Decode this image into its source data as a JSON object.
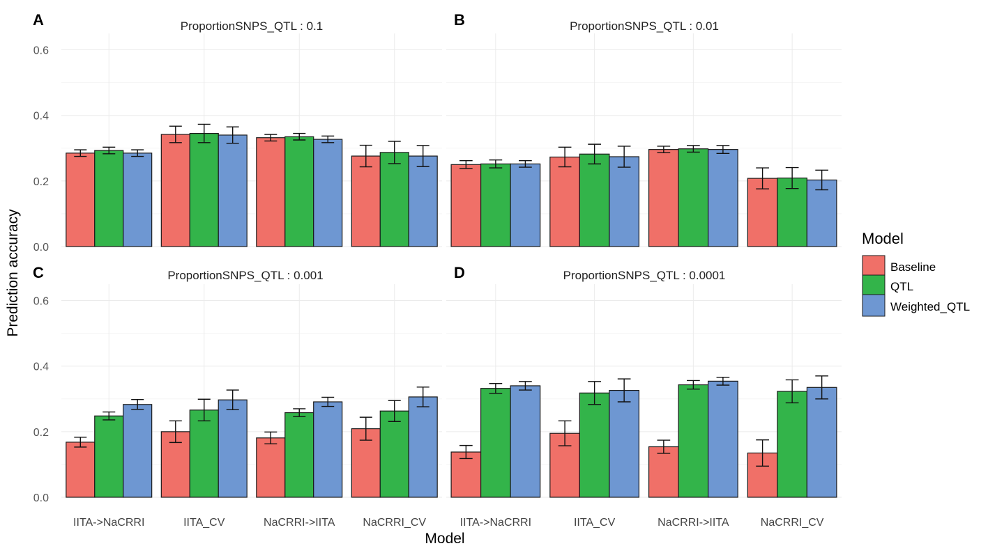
{
  "chart_data": [
    {
      "type": "bar",
      "panel_label": "A",
      "title": "ProportionSNPS_QTL : 0.1",
      "categories": [
        "IITA->NaCRRI",
        "IITA_CV",
        "NaCRRI->IITA",
        "NaCRRI_CV"
      ],
      "series": [
        {
          "name": "Baseline",
          "values": [
            0.285,
            0.342,
            0.332,
            0.276
          ],
          "errors": [
            0.01,
            0.025,
            0.01,
            0.033
          ]
        },
        {
          "name": "QTL",
          "values": [
            0.293,
            0.345,
            0.335,
            0.287
          ],
          "errors": [
            0.01,
            0.028,
            0.01,
            0.034
          ]
        },
        {
          "name": "Weighted_QTL",
          "values": [
            0.285,
            0.34,
            0.327,
            0.276
          ],
          "errors": [
            0.01,
            0.025,
            0.01,
            0.032
          ]
        }
      ],
      "ylim": [
        0,
        0.65
      ],
      "yticks": [
        0.0,
        0.2,
        0.4,
        0.6
      ],
      "show_x_labels": false,
      "show_y_labels": true
    },
    {
      "type": "bar",
      "panel_label": "B",
      "title": "ProportionSNPS_QTL : 0.01",
      "categories": [
        "IITA->NaCRRI",
        "IITA_CV",
        "NaCRRI->IITA",
        "NaCRRI_CV"
      ],
      "series": [
        {
          "name": "Baseline",
          "values": [
            0.25,
            0.273,
            0.296,
            0.208
          ],
          "errors": [
            0.012,
            0.03,
            0.01,
            0.032
          ]
        },
        {
          "name": "QTL",
          "values": [
            0.252,
            0.282,
            0.298,
            0.209
          ],
          "errors": [
            0.012,
            0.03,
            0.01,
            0.032
          ]
        },
        {
          "name": "Weighted_QTL",
          "values": [
            0.252,
            0.274,
            0.296,
            0.203
          ],
          "errors": [
            0.01,
            0.032,
            0.012,
            0.03
          ]
        }
      ],
      "ylim": [
        0,
        0.65
      ],
      "yticks": [
        0.0,
        0.2,
        0.4,
        0.6
      ],
      "show_x_labels": false,
      "show_y_labels": false
    },
    {
      "type": "bar",
      "panel_label": "C",
      "title": "ProportionSNPS_QTL : 0.001",
      "categories": [
        "IITA->NaCRRI",
        "IITA_CV",
        "NaCRRI->IITA",
        "NaCRRI_CV"
      ],
      "series": [
        {
          "name": "Baseline",
          "values": [
            0.168,
            0.2,
            0.181,
            0.209
          ],
          "errors": [
            0.015,
            0.033,
            0.018,
            0.035
          ]
        },
        {
          "name": "QTL",
          "values": [
            0.248,
            0.266,
            0.258,
            0.263
          ],
          "errors": [
            0.012,
            0.033,
            0.012,
            0.032
          ]
        },
        {
          "name": "Weighted_QTL",
          "values": [
            0.283,
            0.297,
            0.291,
            0.306
          ],
          "errors": [
            0.015,
            0.03,
            0.014,
            0.03
          ]
        }
      ],
      "ylim": [
        0,
        0.65
      ],
      "yticks": [
        0.0,
        0.2,
        0.4,
        0.6
      ],
      "show_x_labels": true,
      "show_y_labels": true
    },
    {
      "type": "bar",
      "panel_label": "D",
      "title": "ProportionSNPS_QTL : 0.0001",
      "categories": [
        "IITA->NaCRRI",
        "IITA_CV",
        "NaCRRI->IITA",
        "NaCRRI_CV"
      ],
      "series": [
        {
          "name": "Baseline",
          "values": [
            0.138,
            0.195,
            0.154,
            0.135
          ],
          "errors": [
            0.02,
            0.038,
            0.02,
            0.04
          ]
        },
        {
          "name": "QTL",
          "values": [
            0.332,
            0.318,
            0.343,
            0.323
          ],
          "errors": [
            0.015,
            0.035,
            0.013,
            0.035
          ]
        },
        {
          "name": "Weighted_QTL",
          "values": [
            0.34,
            0.326,
            0.354,
            0.335
          ],
          "errors": [
            0.013,
            0.035,
            0.012,
            0.035
          ]
        }
      ],
      "ylim": [
        0,
        0.65
      ],
      "yticks": [
        0.0,
        0.2,
        0.4,
        0.6
      ],
      "show_x_labels": true,
      "show_y_labels": false
    }
  ],
  "axes": {
    "xlabel": "Model",
    "ylabel": "Prediction accuracy"
  },
  "legend": {
    "title": "Model",
    "entries": [
      {
        "label": "Baseline",
        "color": "#F07068"
      },
      {
        "label": "QTL",
        "color": "#33B44A"
      },
      {
        "label": "Weighted_QTL",
        "color": "#6E97D2"
      }
    ]
  }
}
